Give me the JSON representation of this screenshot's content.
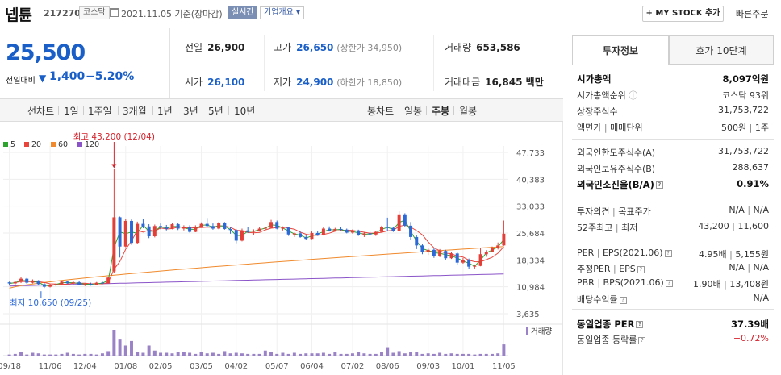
{
  "header": {
    "name": "넵튠",
    "code": "217270",
    "market": "코스닥",
    "date": "2021.11.05  기준(장마감)",
    "live": "실시간",
    "overview": "기업개요 ▾",
    "mystock": "+ MY STOCK 추가",
    "quick_order": "빠른주문"
  },
  "price": {
    "current": "25,500",
    "change_label": "전일대비",
    "change_arrow": "▼",
    "change": "1,400",
    "change_pct": "−5.20%"
  },
  "quote": {
    "prev_label": "전일",
    "prev": "26,900",
    "open_label": "시가",
    "open": "26,100",
    "high_label": "고가",
    "high": "26,650",
    "upper_limit": "(상한가 34,950)",
    "low_label": "저가",
    "low": "24,900",
    "lower_limit": "(하한가 18,850)",
    "volume_label": "거래량",
    "volume": "653,586",
    "amount_label": "거래대금",
    "amount": "16,845 백만"
  },
  "tabs": {
    "line_chart": "선차트",
    "d1": "1일",
    "w1": "1주일",
    "m3": "3개월",
    "y1": "1년",
    "y3": "3년",
    "y5": "5년",
    "y10": "10년",
    "candle_chart": "봉차트",
    "daily": "일봉",
    "weekly": "주봉",
    "monthly": "월봉"
  },
  "chart_data": {
    "type": "candlestick",
    "legend": [
      {
        "name": "5",
        "color": "#2ea42e"
      },
      {
        "name": "20",
        "color": "#e8453c"
      },
      {
        "name": "60",
        "color": "#f08a2d"
      },
      {
        "name": "120",
        "color": "#8a54c8"
      }
    ],
    "y_ticks": [
      "47,733",
      "40,383",
      "33,033",
      "25,684",
      "18,334",
      "10,984",
      "3,635"
    ],
    "ylim": [
      3635,
      47733
    ],
    "x_ticks": [
      "09/18",
      "11/06",
      "12/04",
      "01/08",
      "02/05",
      "03/05",
      "04/02",
      "05/07",
      "06/04",
      "07/02",
      "08/06",
      "09/03",
      "10/01",
      "11/05"
    ],
    "high_annotation": "최고 43,200 (12/04)",
    "low_annotation": "최저 10,650 (09/25)",
    "volume_label": "거래량",
    "candles": [
      [
        12200,
        12400,
        11400,
        11900
      ],
      [
        11900,
        12600,
        11600,
        12300
      ],
      [
        12300,
        13600,
        12000,
        13200
      ],
      [
        13200,
        13400,
        11800,
        12100
      ],
      [
        12100,
        13000,
        11900,
        12700
      ],
      [
        12700,
        12800,
        11500,
        11700
      ],
      [
        11700,
        12000,
        10650,
        11000
      ],
      [
        11000,
        11800,
        10800,
        11500
      ],
      [
        11500,
        11900,
        11200,
        11700
      ],
      [
        11700,
        12600,
        11600,
        12400
      ],
      [
        12400,
        12600,
        11800,
        11900
      ],
      [
        11900,
        12500,
        11700,
        12200
      ],
      [
        12200,
        12500,
        11500,
        11600
      ],
      [
        11600,
        11900,
        11200,
        11800
      ],
      [
        11800,
        12100,
        11300,
        11500
      ],
      [
        11500,
        12300,
        11400,
        12100
      ],
      [
        12100,
        12400,
        11700,
        11900
      ],
      [
        11900,
        13700,
        11800,
        13500
      ],
      [
        15200,
        43200,
        14800,
        30000
      ],
      [
        30000,
        30200,
        19000,
        22000
      ],
      [
        22000,
        29500,
        21800,
        29000
      ],
      [
        29000,
        29400,
        22500,
        23000
      ],
      [
        23000,
        28800,
        22800,
        28200
      ],
      [
        28200,
        29500,
        27000,
        27500
      ],
      [
        27500,
        28100,
        24300,
        24800
      ],
      [
        24800,
        28000,
        24500,
        27600
      ],
      [
        27600,
        28300,
        26700,
        27200
      ],
      [
        27200,
        27900,
        26400,
        26800
      ],
      [
        26800,
        28500,
        26700,
        28100
      ],
      [
        28100,
        28400,
        26500,
        26900
      ],
      [
        26900,
        27800,
        26400,
        27400
      ],
      [
        27400,
        27800,
        25800,
        26000
      ],
      [
        26000,
        27800,
        25900,
        27400
      ],
      [
        27400,
        28600,
        27300,
        28200
      ],
      [
        28200,
        29800,
        27400,
        27600
      ],
      [
        27600,
        28300,
        26600,
        26900
      ],
      [
        26900,
        28700,
        26700,
        28400
      ],
      [
        28400,
        28700,
        26600,
        26800
      ],
      [
        26800,
        27300,
        25500,
        26500
      ],
      [
        26500,
        26800,
        22900,
        23600
      ],
      [
        23600,
        26900,
        23400,
        26400
      ],
      [
        26400,
        27300,
        25700,
        26000
      ],
      [
        26000,
        26700,
        25100,
        26300
      ],
      [
        26300,
        27300,
        26100,
        26900
      ],
      [
        26900,
        27400,
        26600,
        27100
      ],
      [
        27100,
        29300,
        27000,
        28700
      ],
      [
        28700,
        29100,
        26700,
        26900
      ],
      [
        26900,
        27500,
        26400,
        27200
      ],
      [
        27200,
        27300,
        24900,
        25300
      ],
      [
        25300,
        25800,
        24600,
        25600
      ],
      [
        25600,
        26100,
        24400,
        24600
      ],
      [
        24600,
        25100,
        23700,
        24100
      ],
      [
        24100,
        26100,
        24000,
        25700
      ],
      [
        25700,
        26300,
        24900,
        25200
      ],
      [
        25200,
        27300,
        25000,
        26900
      ],
      [
        26900,
        27500,
        26100,
        26300
      ],
      [
        26300,
        27100,
        26100,
        26800
      ],
      [
        26800,
        27400,
        26400,
        26600
      ],
      [
        26600,
        26900,
        25600,
        25800
      ],
      [
        25800,
        26700,
        25500,
        26400
      ],
      [
        26400,
        26600,
        24900,
        25100
      ],
      [
        25100,
        25900,
        24600,
        25600
      ],
      [
        25600,
        26100,
        25000,
        25300
      ],
      [
        25300,
        26200,
        24900,
        26000
      ],
      [
        26000,
        27700,
        25900,
        27400
      ],
      [
        27400,
        29900,
        26200,
        27100
      ],
      [
        27100,
        27300,
        26000,
        26300
      ],
      [
        26300,
        31600,
        26100,
        30800
      ],
      [
        30800,
        31100,
        27300,
        27700
      ],
      [
        27700,
        28700,
        23700,
        24600
      ],
      [
        24600,
        25100,
        21300,
        22300
      ],
      [
        22300,
        22600,
        19900,
        20600
      ],
      [
        20600,
        21600,
        19700,
        21100
      ],
      [
        21100,
        21700,
        18900,
        19500
      ],
      [
        19500,
        21300,
        19100,
        20800
      ],
      [
        20800,
        21100,
        18400,
        18800
      ],
      [
        18800,
        20600,
        18600,
        20100
      ],
      [
        20100,
        20400,
        17100,
        17600
      ],
      [
        17600,
        18900,
        17300,
        18400
      ],
      [
        18400,
        18700,
        15900,
        16500
      ],
      [
        16500,
        17100,
        16000,
        16700
      ],
      [
        16700,
        21500,
        16600,
        19900
      ],
      [
        19900,
        21000,
        19200,
        20600
      ],
      [
        20600,
        22000,
        20400,
        21500
      ],
      [
        21500,
        23100,
        21200,
        22300
      ],
      [
        22300,
        29100,
        22200,
        25500
      ]
    ],
    "volume": [
      2,
      3,
      6,
      2,
      5,
      4,
      2,
      2,
      2,
      3,
      5,
      3,
      2,
      3,
      3,
      2,
      4,
      8,
      46,
      30,
      18,
      26,
      6,
      5,
      18,
      9,
      5,
      5,
      4,
      7,
      6,
      5,
      3,
      6,
      4,
      5,
      3,
      8,
      4,
      5,
      4,
      3,
      3,
      3,
      9,
      6,
      3,
      5,
      3,
      5,
      3,
      4,
      4,
      4,
      5,
      3,
      6,
      3,
      3,
      4,
      7,
      4,
      3,
      3,
      6,
      15,
      5,
      8,
      4,
      7,
      6,
      3,
      4,
      3,
      5,
      3,
      4,
      3,
      3,
      3,
      2,
      3,
      3,
      3,
      4,
      20
    ]
  },
  "info_tabs": {
    "invest": "투자정보",
    "orderbook": "호가 10단계"
  },
  "info": {
    "mcap_label": "시가총액",
    "mcap": "8,097억원",
    "mcap_rank_label": "시가총액순위",
    "mcap_rank": "코스닥 93위",
    "shares_label": "상장주식수",
    "shares": "31,753,722",
    "par_label": "액면가",
    "unit_label": "매매단위",
    "par": "500원",
    "unit": "1주",
    "foreign_limit_label": "외국인한도주식수(A)",
    "foreign_limit": "31,753,722",
    "foreign_hold_label": "외국인보유주식수(B)",
    "foreign_hold": "288,637",
    "foreign_ratio_label": "외국인소진율(B/A)",
    "foreign_ratio": "0.91%",
    "opinion_label": "투자의견",
    "target_label": "목표주가",
    "opinion": "N/A",
    "target": "N/A",
    "w52_high_label": "52주최고",
    "w52_low_label": "최저",
    "w52_high": "43,200",
    "w52_low": "11,600",
    "per_label": "PER",
    "eps_label": "EPS(2021.06)",
    "per": "4.95배",
    "eps": "5,155원",
    "est_per_label": "추정PER",
    "est_eps_label": "EPS",
    "est_per": "N/A",
    "est_eps": "N/A",
    "pbr_label": "PBR",
    "bps_label": "BPS(2021.06)",
    "pbr": "1.90배",
    "bps": "13,408원",
    "div_label": "배당수익률",
    "div": "N/A",
    "ind_per_label": "동일업종 PER",
    "ind_per": "37.39배",
    "ind_rate_label": "동일업종 등락률",
    "ind_rate": "+0.72%"
  }
}
